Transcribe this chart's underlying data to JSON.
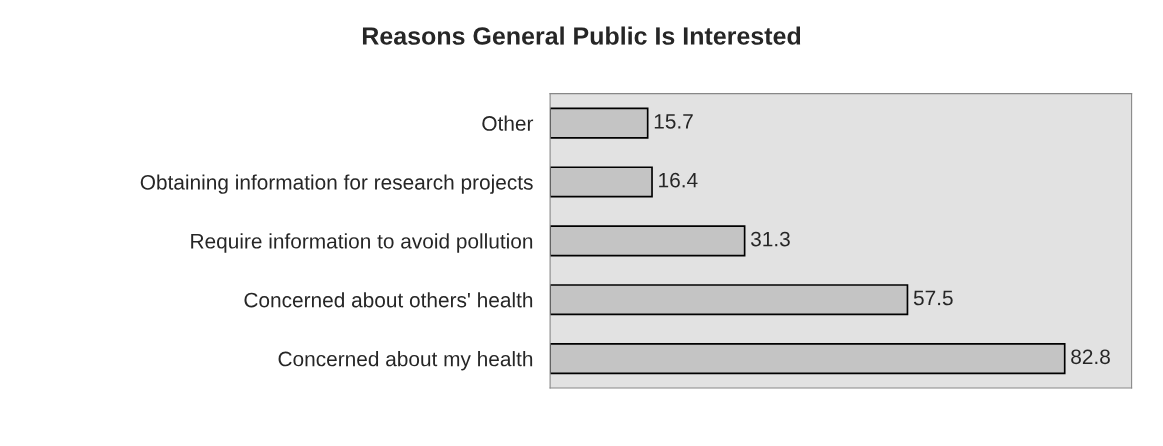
{
  "chart_data": {
    "type": "bar",
    "orientation": "horizontal",
    "title": "Reasons General Public Is Interested",
    "categories": [
      "Other",
      "Obtaining information for research projects",
      "Require information to avoid pollution",
      "Concerned about others' health",
      "Concerned about my health"
    ],
    "values": [
      15.7,
      16.4,
      31.3,
      57.5,
      82.8
    ],
    "color": "#c4c4c4",
    "data_labels": true,
    "grid": false,
    "legend": false
  }
}
